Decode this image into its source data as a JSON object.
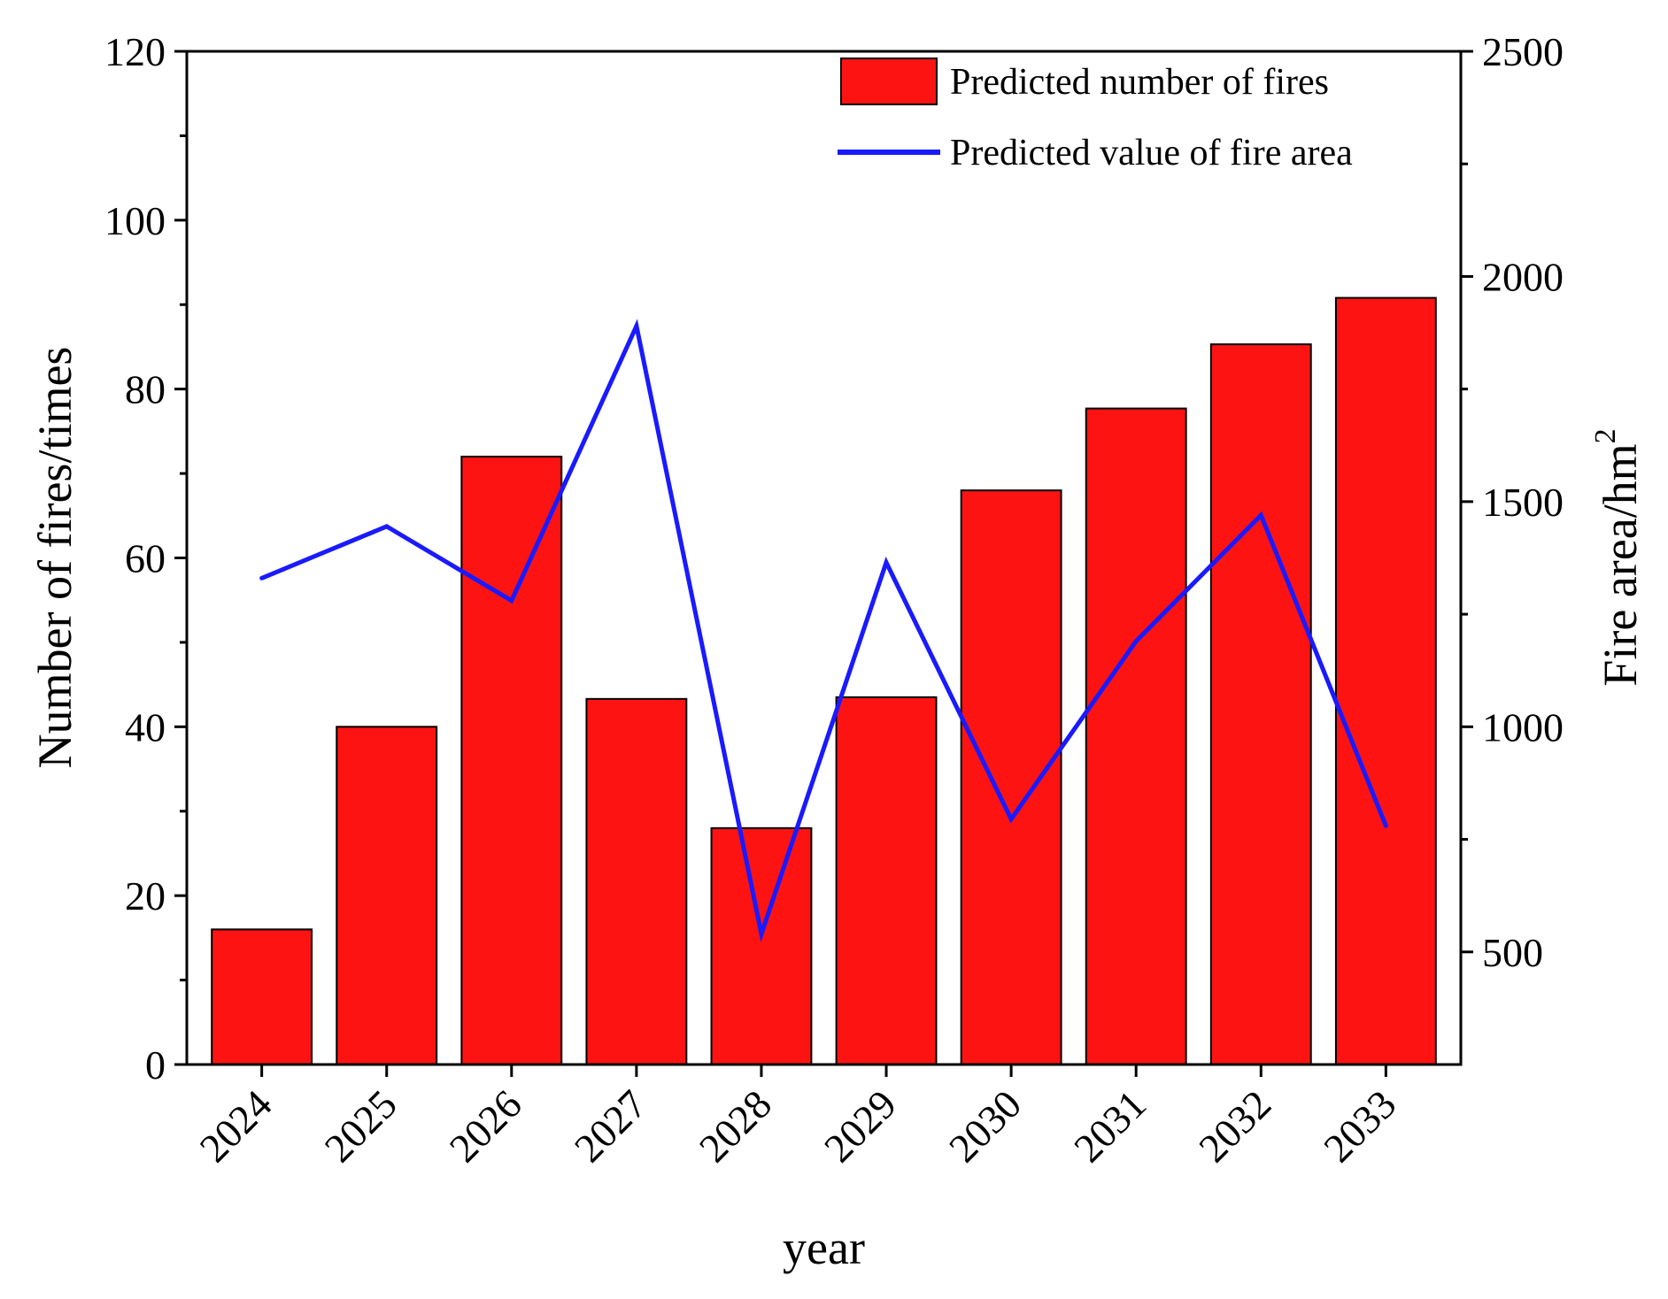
{
  "chart_data": {
    "type": "bar+line",
    "title": "",
    "categories": [
      "2024",
      "2025",
      "2026",
      "2027",
      "2028",
      "2029",
      "2030",
      "2031",
      "2032",
      "2033"
    ],
    "xlabel": "year",
    "series": [
      {
        "name": "Predicted number of fires",
        "type": "bar",
        "axis": "left",
        "color": "#fe1313",
        "values": [
          16,
          40,
          72,
          43.3,
          28,
          43.5,
          68,
          77.7,
          85.3,
          90.8
        ]
      },
      {
        "name": "Predicted value of fire area",
        "type": "line",
        "axis": "right",
        "color": "#1a1aff",
        "values": [
          1330,
          1445,
          1280,
          1890,
          540,
          1365,
          795,
          1190,
          1470,
          780
        ]
      }
    ],
    "y_left": {
      "label": "Number of fires/times",
      "ylim": [
        0,
        120
      ],
      "ticks": [
        0,
        20,
        40,
        60,
        80,
        100,
        120
      ],
      "tick_labels": [
        "0",
        "20",
        "40",
        "60",
        "80",
        "100",
        "120"
      ]
    },
    "y_right": {
      "label_main": "Fire area/hm",
      "label_sup": "2",
      "ylim": [
        250,
        2500
      ],
      "ticks": [
        500,
        1000,
        1500,
        2000,
        2500
      ],
      "tick_labels": [
        "500",
        "1000",
        "1500",
        "2000",
        "2500"
      ]
    },
    "legend": {
      "position": "top-right",
      "entries": [
        "Predicted number of fires",
        "Predicted value of fire area"
      ]
    },
    "grid": false
  }
}
